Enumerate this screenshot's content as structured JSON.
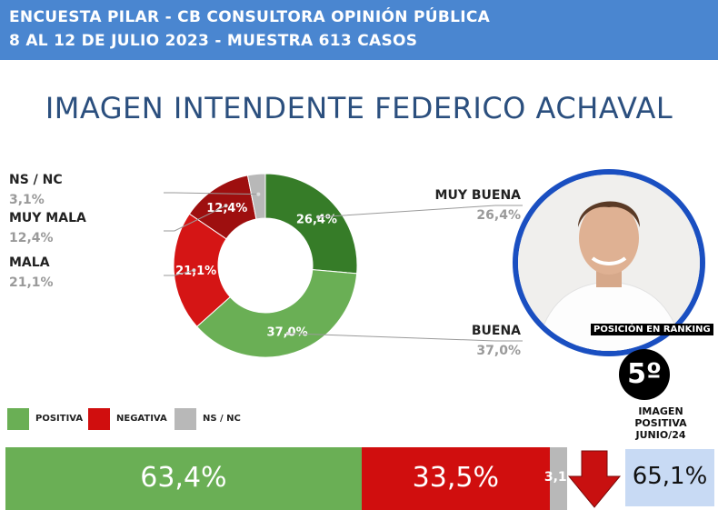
{
  "header": {
    "line1": "ENCUESTA PILAR - CB CONSULTORA OPINIÓN PÚBLICA",
    "line2": "8 AL 12 DE JULIO 2023 - MUESTRA 613 CASOS"
  },
  "title": "IMAGEN INTENDENTE FEDERICO ACHAVAL",
  "colors": {
    "muy_buena": "#367c28",
    "buena": "#6aaf55",
    "mala": "#d51515",
    "muy_mala": "#9e0f0f",
    "ns_nc": "#b8b8b8",
    "positiva": "#6aaf55",
    "negativa": "#d00e0e"
  },
  "chart_data": [
    {
      "type": "pie",
      "donut": true,
      "slices": [
        {
          "label": "MUY BUENA",
          "value": 26.4,
          "display": "26,4%"
        },
        {
          "label": "BUENA",
          "value": 37.0,
          "display": "37,0%"
        },
        {
          "label": "MALA",
          "value": 21.1,
          "display": "21,1%"
        },
        {
          "label": "MUY MALA",
          "value": 12.4,
          "display": "12,4%"
        },
        {
          "label": "NS / NC",
          "value": 3.1,
          "display": "3,1%"
        }
      ]
    },
    {
      "type": "bar",
      "orientation": "horizontal",
      "stacked": true,
      "legend": [
        "POSITIVA",
        "NEGATIVA",
        "NS / NC"
      ],
      "segments": [
        {
          "label": "POSITIVA",
          "value": 63.4,
          "display": "63,4%"
        },
        {
          "label": "NEGATIVA",
          "value": 33.5,
          "display": "33,5%"
        },
        {
          "label": "NS / NC",
          "value": 3.1,
          "display": "3,1%"
        }
      ]
    }
  ],
  "ranking": {
    "label": "POSICIÓN EN RANKING",
    "position": "5º",
    "note_line1": "IMAGEN",
    "note_line2": "POSITIVA",
    "note_line3": "JUNIO/24",
    "previous_value": "65,1%",
    "trend_icon": "arrow-down-icon"
  }
}
